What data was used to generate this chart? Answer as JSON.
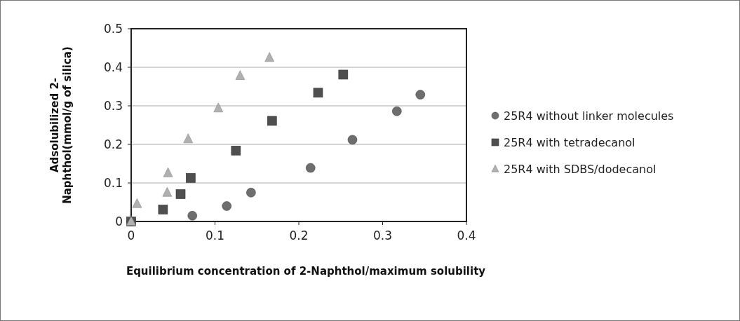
{
  "chart_data": {
    "type": "scatter",
    "xlabel": "Equilibrium concentration of 2-Naphthol/maximum solubility",
    "ylabel": "Adsolubilized 2-Naphthol(mmol/g of silica)",
    "xlim": [
      0,
      0.4
    ],
    "ylim": [
      0,
      0.5
    ],
    "xticks": [
      0,
      0.1,
      0.2,
      0.3,
      0.4
    ],
    "yticks": [
      0,
      0.1,
      0.2,
      0.3,
      0.4,
      0.5
    ],
    "grid": "y",
    "legend": "right",
    "series": [
      {
        "name": "25R4 without linker molecules",
        "color": "#6e6e6e",
        "marker": "circle",
        "x": [
          0,
          0.073,
          0.114,
          0.143,
          0.214,
          0.264,
          0.317,
          0.345
        ],
        "values": [
          0,
          0.015,
          0.04,
          0.075,
          0.139,
          0.212,
          0.286,
          0.329
        ]
      },
      {
        "name": "25R4 with tetradecanol",
        "color": "#4f4f4f",
        "marker": "square",
        "x": [
          0,
          0.038,
          0.059,
          0.071,
          0.125,
          0.168,
          0.223,
          0.253
        ],
        "values": [
          0,
          0.031,
          0.071,
          0.113,
          0.184,
          0.261,
          0.334,
          0.381
        ]
      },
      {
        "name": "25R4 with SDBS/dodecanol",
        "color": "#b0b0b0",
        "marker": "triangle",
        "x": [
          0,
          0.007,
          0.043,
          0.044,
          0.068,
          0.104,
          0.13,
          0.165
        ],
        "values": [
          0,
          0.046,
          0.075,
          0.126,
          0.214,
          0.294,
          0.378,
          0.425
        ]
      }
    ]
  }
}
